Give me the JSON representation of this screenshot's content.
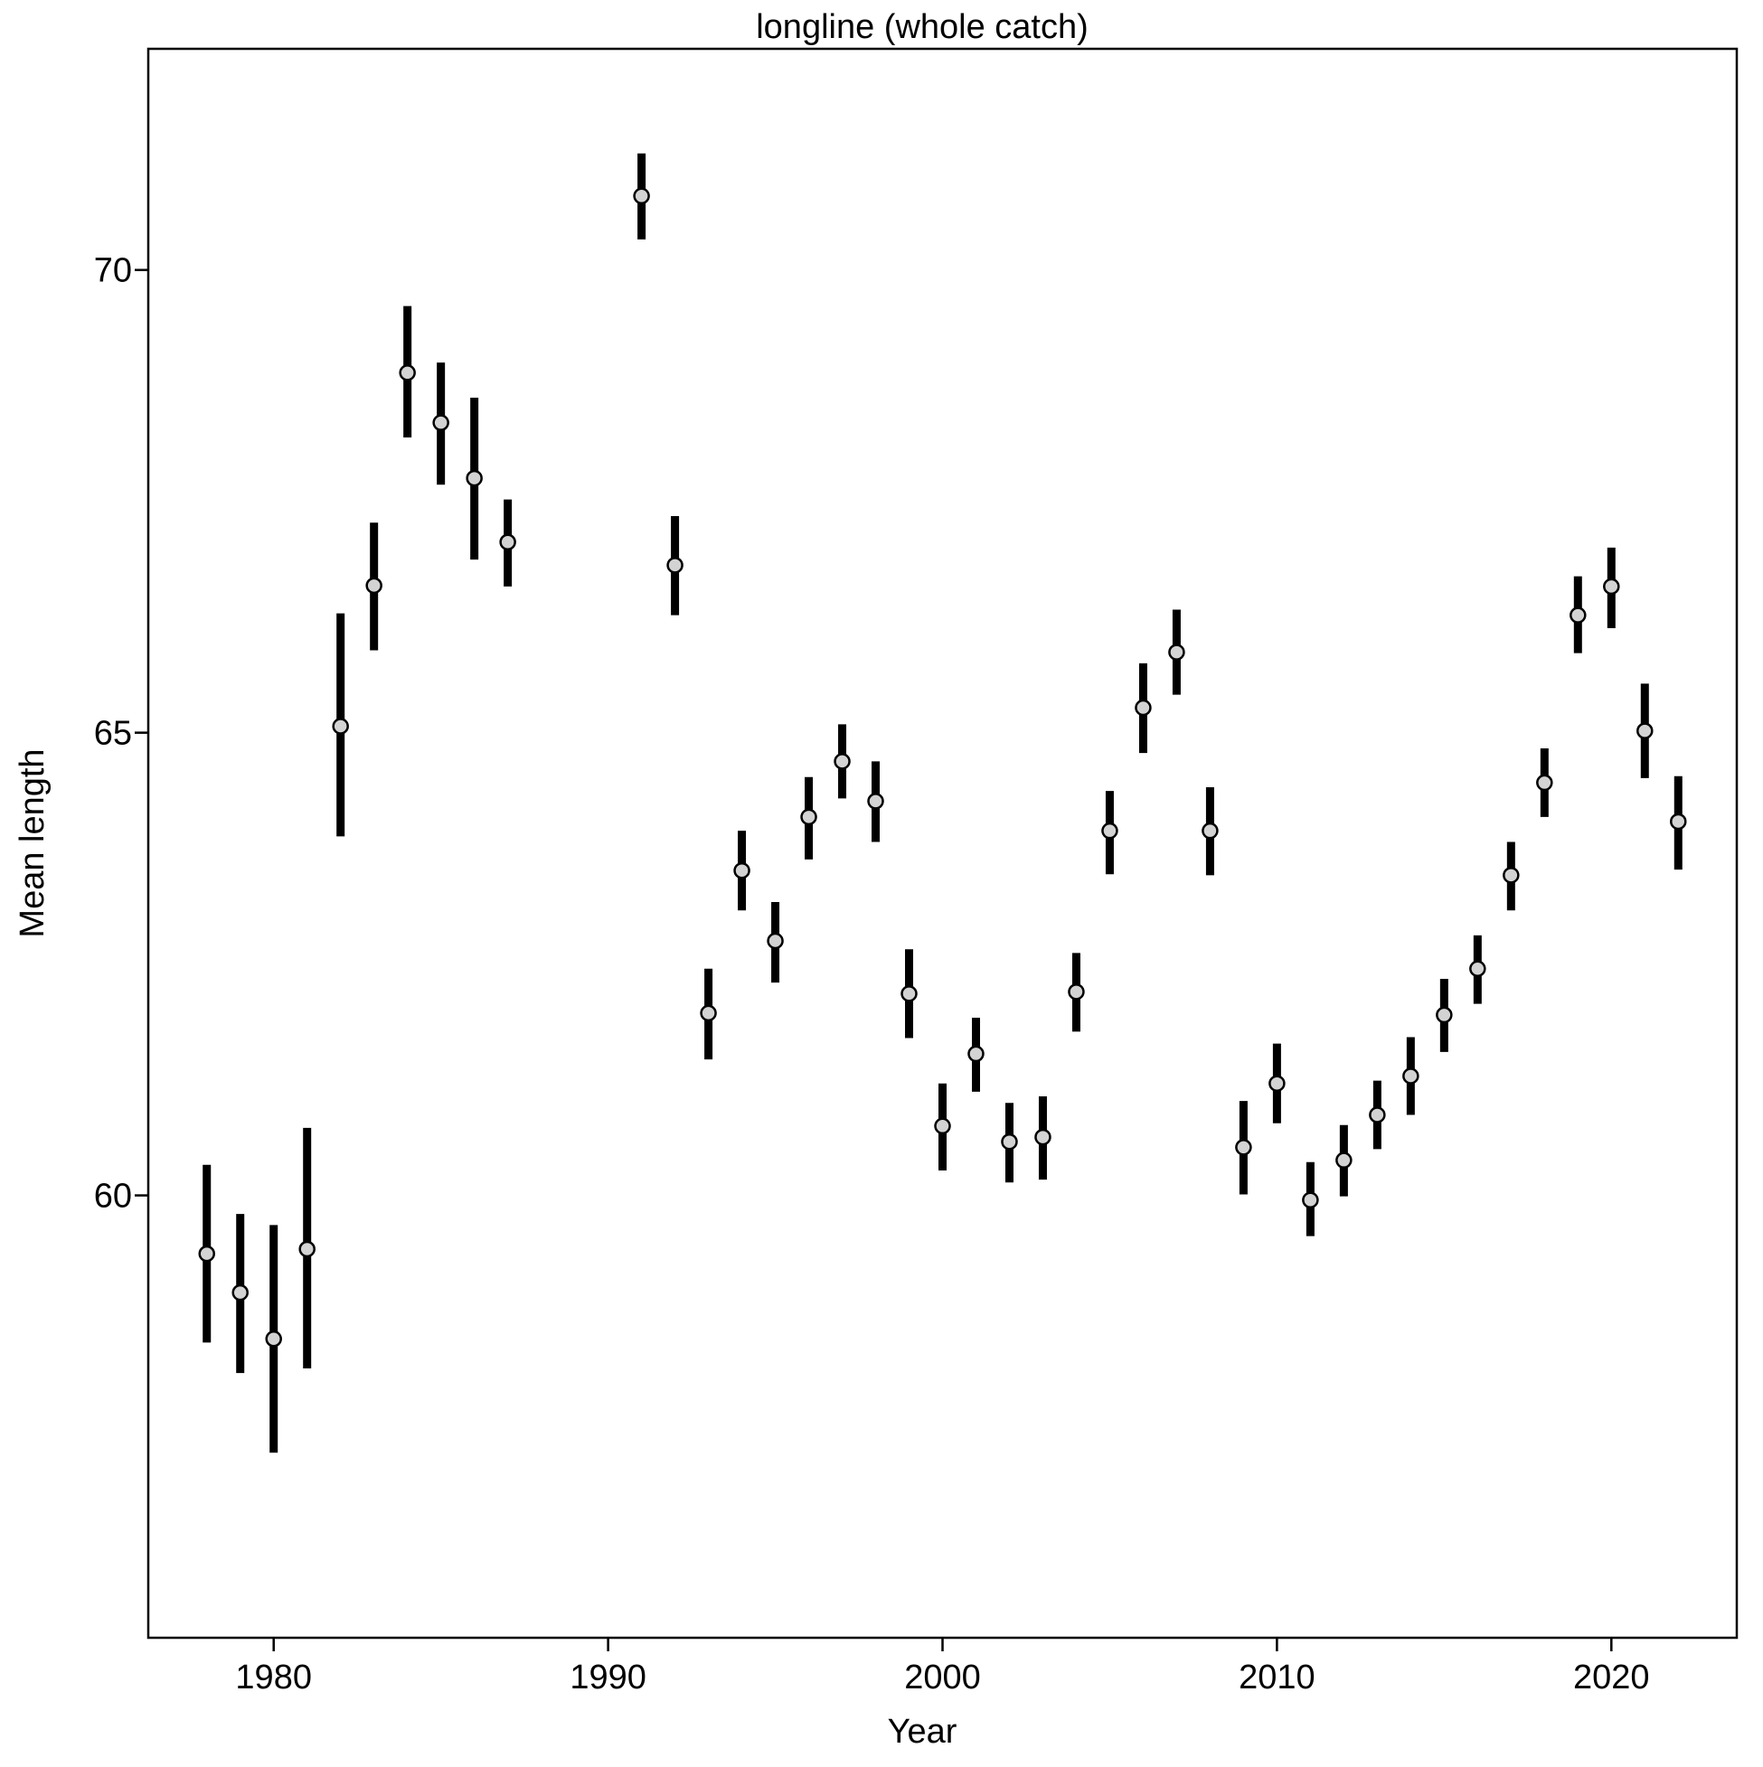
{
  "chart_data": {
    "type": "errorbar",
    "title": "longline (whole catch)",
    "x_label": "Year",
    "y_label": "Mean length",
    "x": [
      1978,
      1979,
      1980,
      1981,
      1982,
      1983,
      1984,
      1985,
      1986,
      1987,
      1991,
      1992,
      1993,
      1994,
      1995,
      1996,
      1997,
      1998,
      1999,
      2000,
      2001,
      2002,
      2003,
      2004,
      2005,
      2006,
      2007,
      2008,
      2009,
      2010,
      2011,
      2012,
      2013,
      2014,
      2015,
      2016,
      2017,
      2018,
      2019,
      2020,
      2021,
      2022
    ],
    "values": [
      59.37,
      58.95,
      58.45,
      59.42,
      65.07,
      66.59,
      68.89,
      68.35,
      67.75,
      67.06,
      70.8,
      66.81,
      61.97,
      63.51,
      62.75,
      64.09,
      64.69,
      64.26,
      62.18,
      60.75,
      61.53,
      60.58,
      60.63,
      62.2,
      63.94,
      65.27,
      65.87,
      63.94,
      60.52,
      61.21,
      59.95,
      60.38,
      60.87,
      61.29,
      61.95,
      62.45,
      63.46,
      64.46,
      66.27,
      66.58,
      65.02,
      64.04
    ],
    "lower": [
      58.41,
      58.08,
      57.22,
      58.13,
      63.88,
      65.89,
      68.19,
      67.68,
      66.87,
      66.58,
      70.33,
      66.27,
      61.47,
      63.08,
      62.3,
      63.63,
      64.29,
      63.82,
      61.7,
      60.27,
      61.12,
      60.14,
      60.17,
      61.77,
      63.47,
      64.78,
      65.41,
      63.46,
      60.01,
      60.78,
      59.56,
      59.99,
      60.5,
      60.87,
      61.55,
      62.07,
      63.08,
      64.09,
      65.86,
      66.13,
      64.51,
      63.52
    ],
    "upper": [
      60.33,
      59.8,
      59.68,
      60.73,
      66.29,
      67.27,
      69.61,
      69.0,
      68.62,
      67.52,
      71.26,
      67.34,
      62.45,
      63.94,
      63.17,
      64.52,
      65.09,
      64.69,
      62.66,
      61.21,
      61.92,
      61.0,
      61.07,
      62.62,
      64.37,
      65.75,
      66.33,
      64.41,
      61.02,
      61.64,
      60.36,
      60.76,
      61.24,
      61.71,
      62.34,
      62.81,
      63.82,
      64.83,
      66.69,
      67.0,
      65.53,
      64.53
    ],
    "color": "#d3d3d3",
    "xlim": [
      1976.25,
      2023.75
    ],
    "xticks": [
      1980,
      1990,
      2000,
      2010,
      2020
    ],
    "ylim": [
      55.22,
      72.39
    ],
    "yticks": [
      60,
      65,
      70
    ]
  }
}
